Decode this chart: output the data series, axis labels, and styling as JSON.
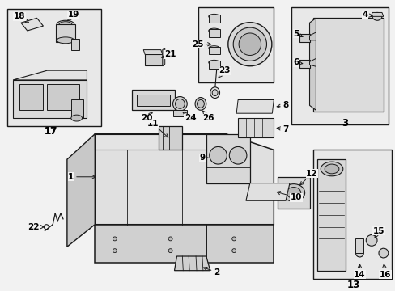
{
  "bg_color": "#f2f2f2",
  "line_color": "#1a1a1a",
  "text_color": "#000000",
  "fig_width": 4.89,
  "fig_height": 3.6,
  "dpi": 100
}
